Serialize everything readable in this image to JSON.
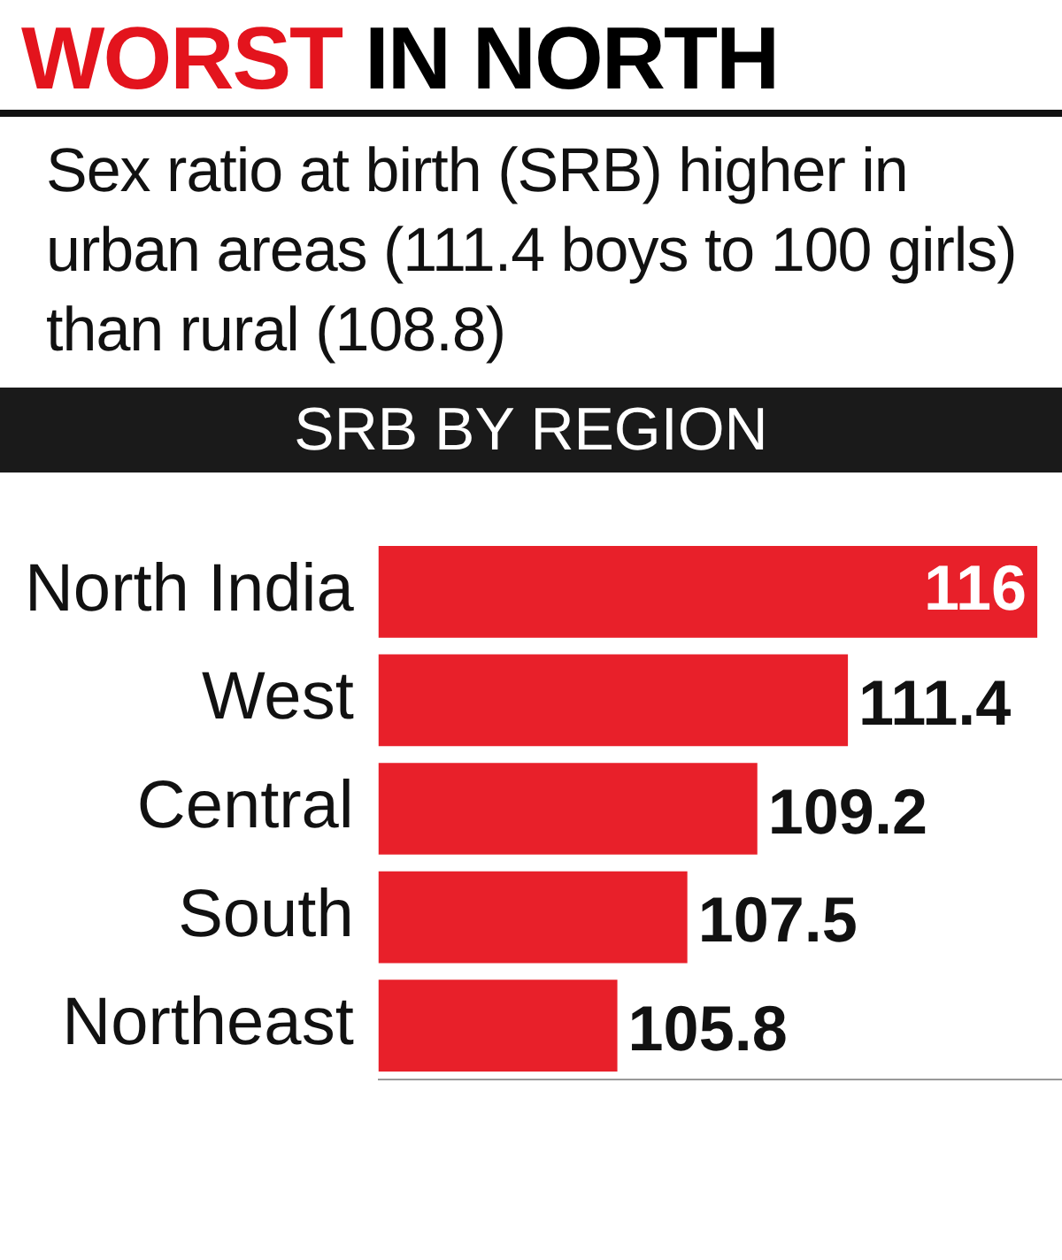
{
  "chart_data": {
    "type": "bar",
    "orientation": "horizontal",
    "title": "WORST IN NORTH",
    "subtitle": "Sex ratio at birth (SRB) higher in urban areas (111.4 boys to 100 girls) than rural (108.8)",
    "annotations": [
      "SRB BY REGION"
    ],
    "categories": [
      "North India",
      "West",
      "Central",
      "South",
      "Northeast"
    ],
    "values": [
      116,
      111.4,
      109.2,
      107.5,
      105.8
    ],
    "color": "#e8202a",
    "xlim": [
      100,
      116.6
    ],
    "tick_labels": "y",
    "grid": false,
    "legend": false,
    "data_labels": true
  }
}
